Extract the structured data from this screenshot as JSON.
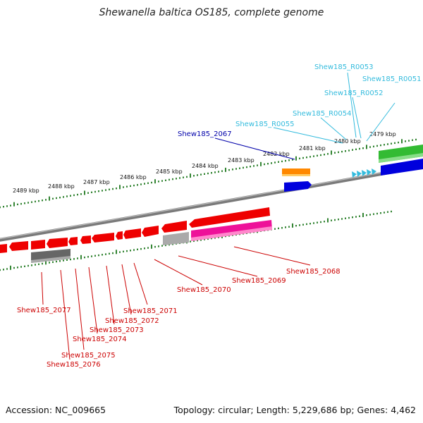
{
  "title": "Shewanella baltica OS185, complete genome",
  "footer": {
    "accession": "Accession: NC_009665",
    "summary": "Topology: circular; Length: 5,229,686 bp; Genes: 4,462"
  },
  "colors": {
    "gene_red": "#ee0000",
    "label_red": "#cc0000",
    "rna_cyan": "#33bbdd",
    "label_blue": "#0000aa",
    "orange": "#ff8800",
    "blue": "#0000dd",
    "green": "#33bb33",
    "magenta": "#ee1199",
    "grey": "#777777",
    "tick_green": "#006600"
  },
  "kbp_labels": [
    "2489 kbp",
    "2488 kbp",
    "2487 kbp",
    "2486 kbp",
    "2485 kbp",
    "2484 kbp",
    "2483 kbp",
    "2482 kbp",
    "2481 kbp",
    "2480 kbp",
    "2479 kbp"
  ],
  "upper_labels": {
    "blue": [
      "Shew185_2067"
    ],
    "cyan": [
      "Shew185_R0053",
      "Shew185_R0051",
      "Shew185_R0052",
      "Shew185_R0054",
      "Shew185_R0055"
    ]
  },
  "lower_labels": [
    "Shew185_2068",
    "Shew185_2069",
    "Shew185_2070",
    "Shew185_2071",
    "Shew185_2072",
    "Shew185_2073",
    "Shew185_2074",
    "Shew185_2075",
    "Shew185_2076",
    "Shew185_2077"
  ]
}
